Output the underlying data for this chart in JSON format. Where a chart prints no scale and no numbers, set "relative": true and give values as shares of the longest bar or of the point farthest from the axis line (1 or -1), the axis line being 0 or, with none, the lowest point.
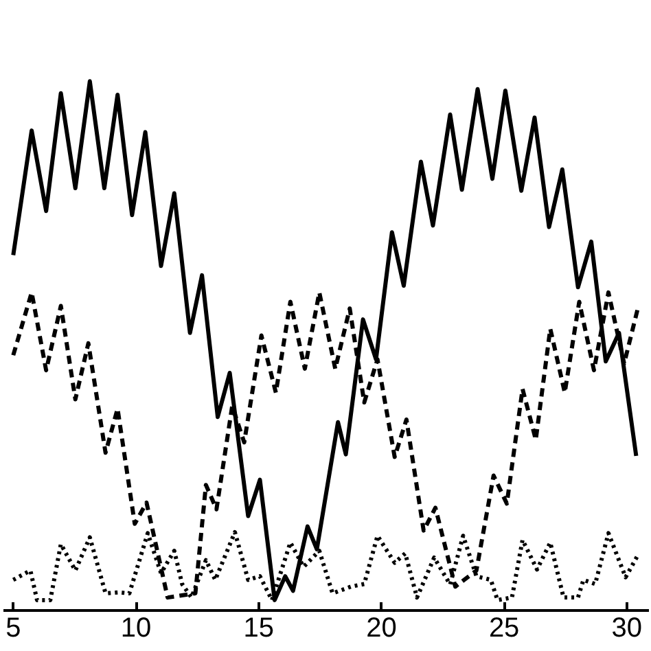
{
  "chart_data": {
    "type": "line",
    "relative": true,
    "xlim": [
      4.6,
      30.9
    ],
    "xticks": [
      5,
      10,
      15,
      20,
      25,
      30
    ],
    "series": [
      {
        "color": "#000000",
        "line_style": "solid",
        "x": [
          5.0,
          5.75,
          6.34,
          6.94,
          7.53,
          8.12,
          8.71,
          9.25,
          9.84,
          10.38,
          11.02,
          11.56,
          12.2,
          12.69,
          13.33,
          13.82,
          14.57,
          15.05,
          15.65,
          16.08,
          16.4,
          16.99,
          17.37,
          18.23,
          18.55,
          19.25,
          19.78,
          20.43,
          20.91,
          21.61,
          22.1,
          22.8,
          23.28,
          23.92,
          24.52,
          25.05,
          25.7,
          26.24,
          26.83,
          27.37,
          28.01,
          28.55,
          29.14,
          29.68,
          30.38
        ],
        "values": [
          0.665,
          0.905,
          0.75,
          0.977,
          0.794,
          1.0,
          0.794,
          0.974,
          0.742,
          0.902,
          0.644,
          0.784,
          0.515,
          0.626,
          0.353,
          0.438,
          0.162,
          0.232,
          0.0,
          0.046,
          0.018,
          0.142,
          0.098,
          0.343,
          0.281,
          0.541,
          0.464,
          0.709,
          0.606,
          0.845,
          0.722,
          0.936,
          0.791,
          0.985,
          0.812,
          0.982,
          0.789,
          0.93,
          0.719,
          0.83,
          0.603,
          0.691,
          0.46,
          0.515,
          0.278
        ]
      },
      {
        "color": "#000000",
        "line_style": "dashed",
        "x": [
          5.0,
          5.75,
          6.34,
          6.94,
          7.53,
          8.06,
          8.76,
          9.25,
          9.95,
          10.43,
          11.29,
          12.42,
          12.85,
          13.28,
          13.92,
          14.41,
          15.11,
          15.7,
          16.29,
          16.88,
          17.47,
          18.12,
          18.71,
          19.3,
          19.84,
          20.54,
          21.02,
          21.72,
          22.2,
          23.01,
          23.87,
          24.57,
          25.11,
          25.75,
          26.29,
          26.88,
          27.47,
          28.06,
          28.66,
          29.25,
          29.89,
          30.43
        ],
        "values": [
          0.472,
          0.593,
          0.443,
          0.567,
          0.387,
          0.495,
          0.284,
          0.369,
          0.147,
          0.188,
          0.005,
          0.013,
          0.222,
          0.175,
          0.374,
          0.304,
          0.51,
          0.4,
          0.575,
          0.446,
          0.593,
          0.446,
          0.562,
          0.381,
          0.464,
          0.276,
          0.348,
          0.134,
          0.178,
          0.026,
          0.057,
          0.24,
          0.186,
          0.407,
          0.309,
          0.523,
          0.4,
          0.575,
          0.443,
          0.593,
          0.456,
          0.559
        ]
      },
      {
        "color": "#000000",
        "line_style": "dotted",
        "x": [
          5.0,
          5.7,
          5.97,
          6.51,
          6.94,
          7.53,
          8.12,
          8.76,
          9.3,
          9.73,
          10.48,
          11.02,
          11.56,
          11.88,
          12.26,
          12.85,
          13.23,
          14.03,
          14.57,
          15.05,
          15.54,
          16.29,
          16.83,
          17.47,
          18.01,
          18.76,
          19.3,
          19.84,
          20.54,
          20.97,
          21.45,
          22.15,
          22.8,
          23.33,
          23.87,
          24.46,
          24.73,
          25.32,
          25.75,
          26.34,
          26.88,
          27.42,
          28.01,
          28.23,
          28.71,
          29.25,
          29.95,
          30.43
        ],
        "values": [
          0.039,
          0.057,
          0,
          0,
          0.108,
          0.057,
          0.121,
          0.013,
          0.015,
          0.013,
          0.129,
          0.052,
          0.095,
          0.031,
          0.005,
          0.077,
          0.039,
          0.131,
          0.039,
          0.046,
          0,
          0.111,
          0.064,
          0.095,
          0.013,
          0.026,
          0.031,
          0.124,
          0.072,
          0.09,
          0.005,
          0.082,
          0.03,
          0.124,
          0.046,
          0.039,
          0,
          0.005,
          0.116,
          0.059,
          0.111,
          0.005,
          0.005,
          0.039,
          0.031,
          0.129,
          0.044,
          0.085
        ]
      }
    ]
  }
}
